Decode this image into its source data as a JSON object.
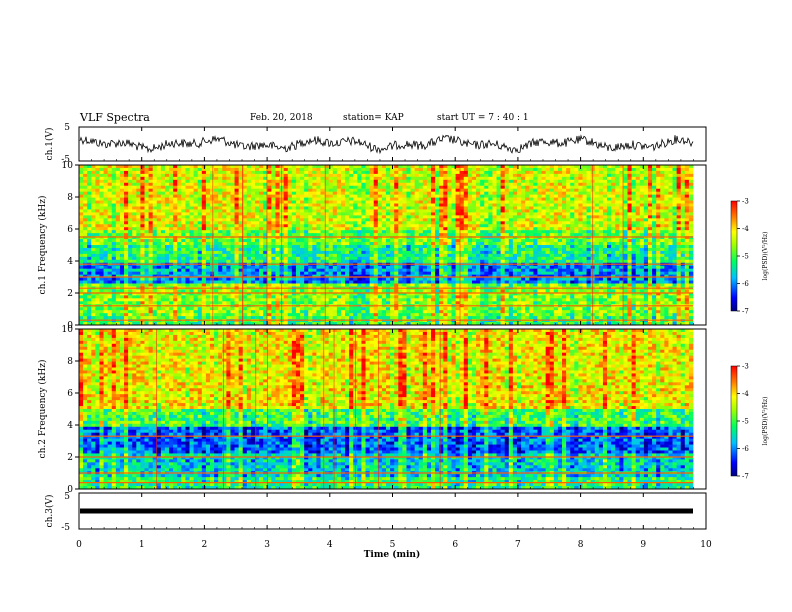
{
  "header": {
    "title": "VLF Spectra",
    "date": "Feb. 20, 2018",
    "station": "station= KAP",
    "start": "start  UT  =   7 : 40 : 1"
  },
  "chart_data": [
    {
      "type": "line",
      "panel": "ch1-waveform",
      "ylabel": "ch.1(V)",
      "ylim": [
        -5,
        5
      ],
      "yticks": [
        "5",
        "-5"
      ],
      "xlim": [
        0,
        10
      ],
      "grid": false
    },
    {
      "type": "heatmap",
      "panel": "ch1-spectrogram",
      "ylabel": "ch.1 Frequency  (kHz)",
      "ylim": [
        0,
        10
      ],
      "yticks": [
        "0",
        "2",
        "4",
        "6",
        "8",
        "10"
      ],
      "xlim": [
        0,
        10
      ],
      "colorbar": {
        "label": "log(PSD)(V²/Hz)",
        "range": [
          -7,
          -3
        ],
        "ticks": [
          "-3",
          "-4",
          "-5",
          "-6",
          "-7"
        ]
      },
      "bands_khz": [
        0.3,
        1.2,
        2.0,
        2.3,
        3.0,
        3.8,
        5.5
      ]
    },
    {
      "type": "heatmap",
      "panel": "ch2-spectrogram",
      "ylabel": "ch.2 Frequency  (kHz)",
      "ylim": [
        0,
        10
      ],
      "yticks": [
        "0",
        "2",
        "4",
        "6",
        "8",
        "10"
      ],
      "xlim": [
        0,
        10
      ],
      "colorbar": {
        "label": "log(PSD)(V²/Hz)",
        "range": [
          -7,
          -3
        ],
        "ticks": [
          "-3",
          "-4",
          "-5",
          "-6",
          "-7"
        ]
      },
      "bands_khz": [
        0.4,
        1.0,
        2.0,
        3.3
      ]
    },
    {
      "type": "line",
      "panel": "ch3-waveform",
      "ylabel": "ch.3(V)",
      "ylim": [
        -5,
        5
      ],
      "yticks": [
        "5",
        "-5"
      ],
      "xlim": [
        0,
        10
      ],
      "constant_value": 0,
      "xlabel": "Time  (min)",
      "xticks": [
        "0",
        "1",
        "2",
        "3",
        "4",
        "5",
        "6",
        "7",
        "8",
        "9",
        "10"
      ]
    }
  ]
}
